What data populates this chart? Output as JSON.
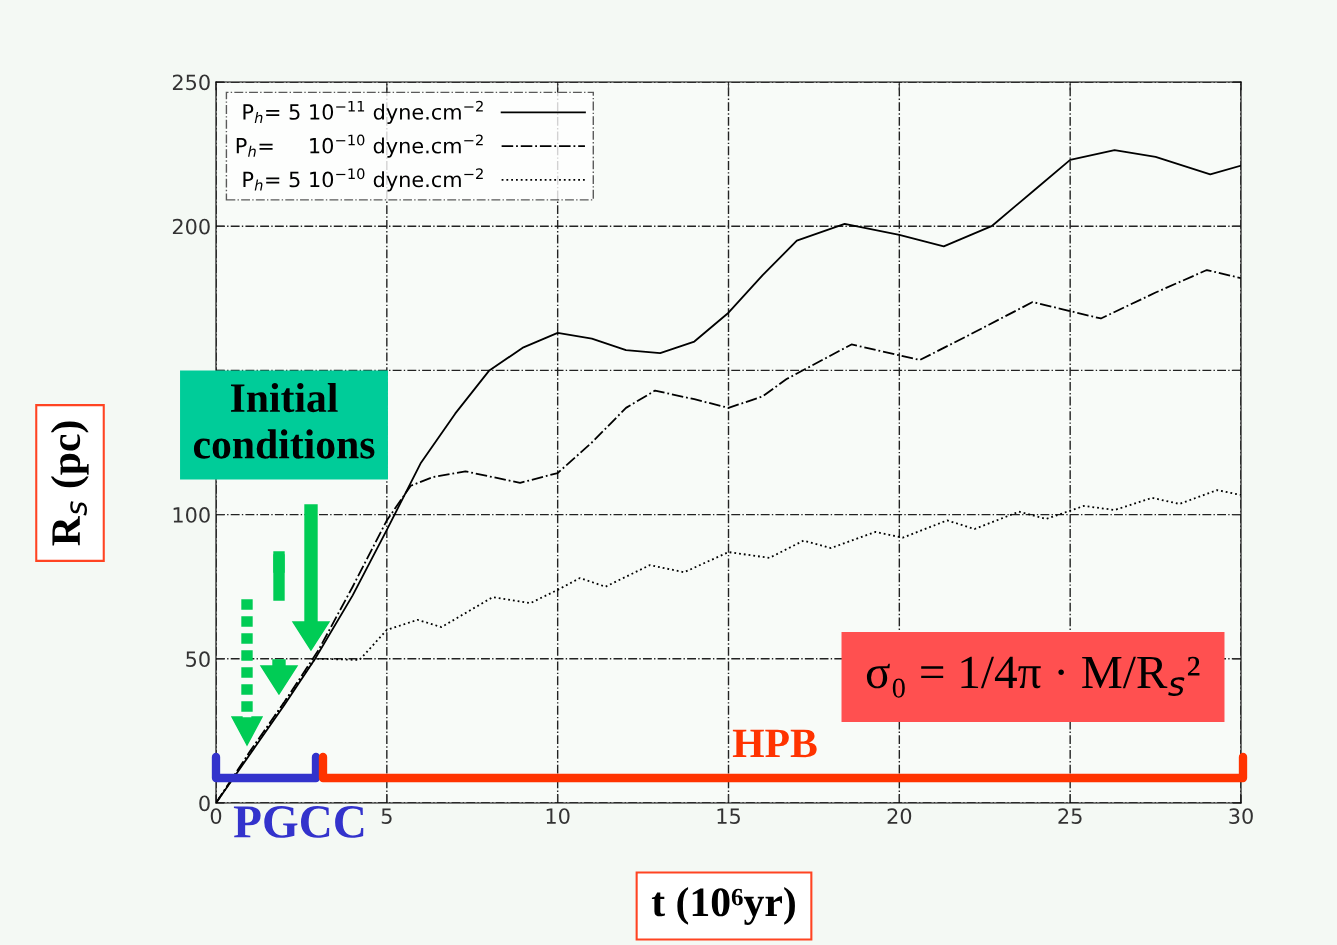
{
  "chart_data": {
    "type": "line",
    "xlabel": "t (10⁶yr)",
    "ylabel": "R$_{s}$ (pc)",
    "xlim": [
      0,
      30
    ],
    "ylim": [
      0,
      250
    ],
    "xticks": [
      0,
      5,
      10,
      15,
      20,
      25,
      30
    ],
    "yticks": [
      0,
      50,
      100,
      {
        "value": 150,
        "label": null
      },
      200,
      250
    ],
    "grid": true,
    "legend": "top left",
    "series": [
      {
        "name": "P$_{h}$= 5 10$^{−11}$ dyne.cm$^{−2}$",
        "color": "#000000",
        "line_style": "solid",
        "x": [
          0,
          1,
          2,
          2.9,
          4,
          5,
          6,
          7,
          8,
          9,
          10,
          11,
          12,
          13,
          14,
          15,
          16,
          17,
          18.4,
          20,
          21.3,
          22.7,
          24,
          25,
          26.3,
          27.5,
          29.1,
          30
        ],
        "values": [
          0,
          17,
          34,
          50,
          72,
          94.7,
          118,
          135,
          150,
          158,
          163,
          161,
          157,
          156,
          160,
          170,
          183,
          195,
          200.8,
          197,
          193,
          200,
          213,
          223,
          226.4,
          224,
          218,
          221
        ]
      },
      {
        "name": "P$_{h}$=     10$^{−10}$ dyne.cm$^{−2}$",
        "color": "#000000",
        "line_style": "dashdot",
        "x": [
          0,
          1,
          2,
          3,
          4,
          5,
          5.7,
          6.35,
          7.3,
          8.9,
          10,
          11,
          12,
          12.85,
          14,
          15,
          16,
          16.7,
          18.6,
          20.6,
          22,
          23.9,
          25.9,
          27.5,
          29,
          30
        ],
        "values": [
          0,
          18,
          35,
          53,
          75,
          98,
          110,
          113,
          115,
          111,
          114.4,
          125,
          137,
          143,
          140,
          137,
          141,
          147,
          159,
          153.6,
          162,
          173.7,
          168,
          177,
          184.8,
          182
        ]
      },
      {
        "name": "P$_{h}$= 5 10$^{−10}$ dyne.cm$^{−2}$",
        "color": "#000000",
        "line_style": "dotted",
        "x": [
          0,
          1,
          2,
          2.9,
          3.1,
          4.2,
          5,
          5.9,
          6.6,
          8.1,
          9.2,
          10,
          10.65,
          11.4,
          12.7,
          13.7,
          15,
          16.2,
          17.2,
          18,
          19.3,
          20.1,
          21.4,
          22.2,
          23.5,
          24.3,
          25.4,
          26.3,
          27.4,
          28.2,
          29.3,
          30
        ],
        "values": [
          0,
          17.5,
          35,
          50,
          50,
          49.6,
          60,
          63.5,
          61,
          71.4,
          69.3,
          73.9,
          78,
          75,
          82.5,
          80,
          87,
          85,
          91,
          88.4,
          94,
          92,
          98,
          95,
          101,
          98.5,
          103,
          101.6,
          105.8,
          103.7,
          108.5,
          106.8
        ]
      }
    ],
    "annotations": [
      "Initial conditions",
      "PGCC",
      "HPB",
      "σ₀ = 1/4π · M/R$_{s}$²"
    ]
  }
}
